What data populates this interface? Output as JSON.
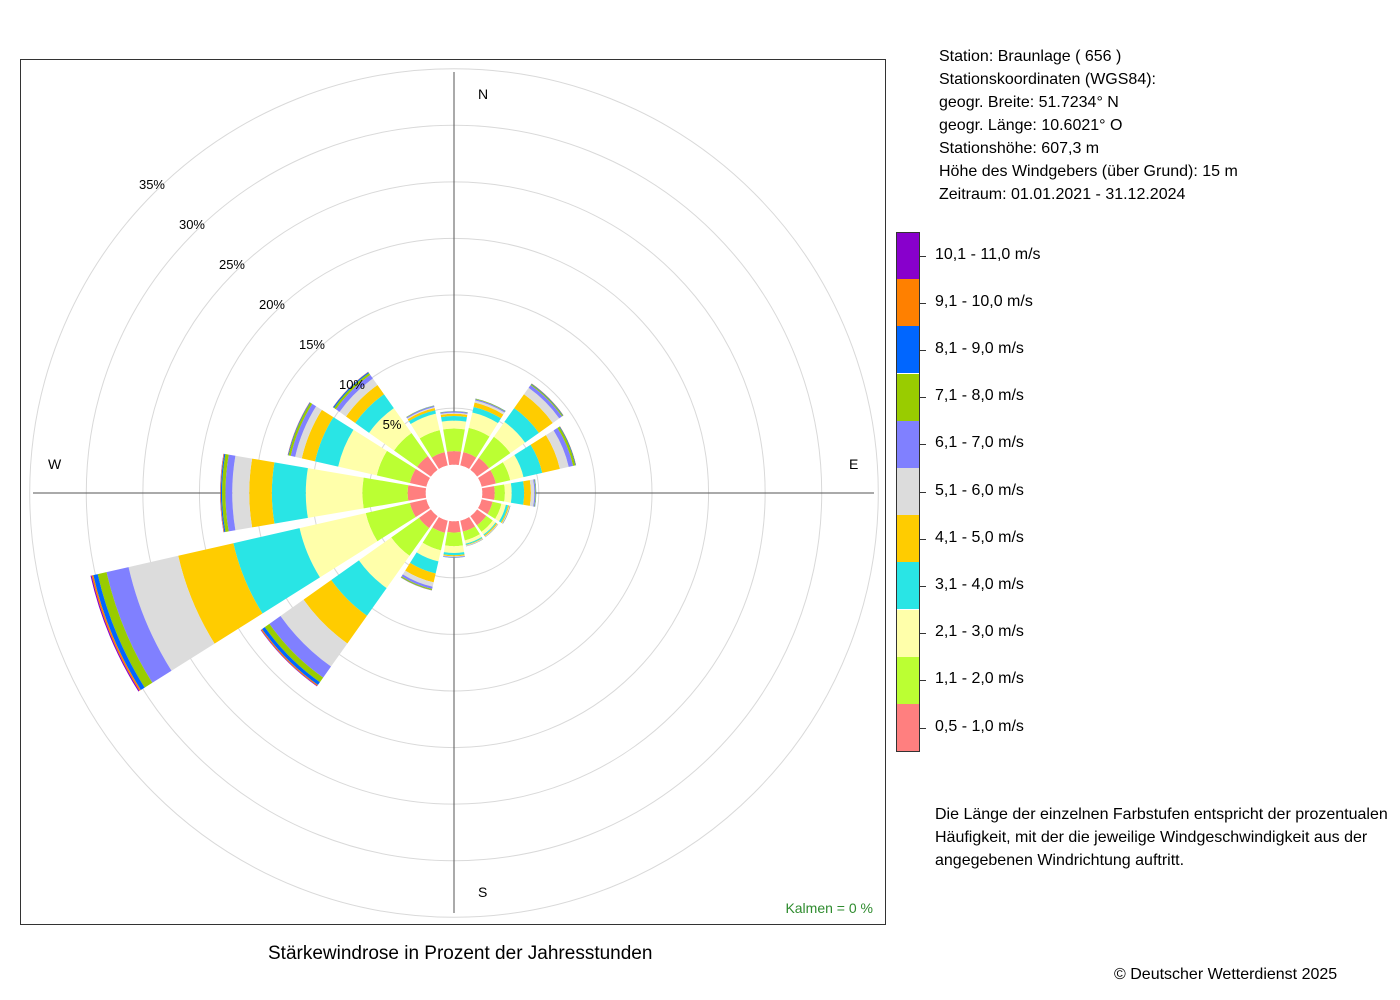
{
  "chart_data": {
    "type": "wind-rose",
    "title": "Stärkewindrose in Prozent der Jahresstunden",
    "directions": [
      "N",
      "NNE",
      "NE",
      "ENE",
      "E",
      "ESE",
      "SE",
      "SSE",
      "S",
      "SSW",
      "SW",
      "WSW",
      "W",
      "WNW",
      "NW",
      "NNW"
    ],
    "direction_labels": {
      "N": "N",
      "E": "E",
      "S": "S",
      "W": "W"
    },
    "rlim": [
      0,
      35
    ],
    "ring_labels": [
      "5%",
      "10%",
      "15%",
      "20%",
      "25%",
      "30%",
      "35%"
    ],
    "ring_values": [
      5,
      10,
      15,
      20,
      25,
      30,
      35
    ],
    "calm_text": "Kalmen  =  0 %",
    "series": [
      {
        "name": "0,5 - 1,0 m/s",
        "color": "#ff7f7f",
        "values": [
          1.2,
          1.2,
          1.3,
          1.3,
          1.1,
          1.0,
          1.0,
          1.0,
          1.0,
          1.1,
          1.3,
          1.5,
          1.6,
          1.5,
          1.5,
          1.2
        ]
      },
      {
        "name": "1,1 - 2,0 m/s",
        "color": "#bbff33",
        "values": [
          2.0,
          2.2,
          2.3,
          1.3,
          0.9,
          0.8,
          0.7,
          0.8,
          1.2,
          1.6,
          3.0,
          4.0,
          4.0,
          3.0,
          2.5,
          2.0
        ]
      },
      {
        "name": "2,1 - 3,0 m/s",
        "color": "#ffffaa",
        "values": [
          0.7,
          1.4,
          1.6,
          1.2,
          0.6,
          0.4,
          0.3,
          0.3,
          0.6,
          1.0,
          3.5,
          6.0,
          5.0,
          3.5,
          2.7,
          1.5
        ]
      },
      {
        "name": "3,1 - 4,0 m/s",
        "color": "#29e5e5",
        "values": [
          0.4,
          0.5,
          1.5,
          1.7,
          1.1,
          0.2,
          0.1,
          0.1,
          0.2,
          1.1,
          3.0,
          6.0,
          3.0,
          2.1,
          1.5,
          0.3
        ]
      },
      {
        "name": "4,1 - 5,0 m/s",
        "color": "#ffcc00",
        "values": [
          0.2,
          0.4,
          1.5,
          1.6,
          0.6,
          0.1,
          0.1,
          0.05,
          0.1,
          0.8,
          3.0,
          5.0,
          2.0,
          1.2,
          1.0,
          0.2
        ]
      },
      {
        "name": "5,1 - 6,0 m/s",
        "color": "#dcdcdc",
        "values": [
          0.1,
          0.2,
          0.7,
          0.8,
          0.3,
          0.05,
          0.05,
          0.05,
          0.05,
          0.4,
          2.5,
          4.5,
          1.5,
          0.6,
          0.7,
          0.1
        ]
      },
      {
        "name": "6,1 - 7,0 m/s",
        "color": "#8080ff",
        "values": [
          0.1,
          0.1,
          0.3,
          0.4,
          0.1,
          0.03,
          0.03,
          0.03,
          0.05,
          0.2,
          1.2,
          2.0,
          0.6,
          0.4,
          0.4,
          0.1
        ]
      },
      {
        "name": "7,1 - 8,0 m/s",
        "color": "#99cc00",
        "values": [
          0.03,
          0.05,
          0.1,
          0.2,
          0.05,
          0.02,
          0.01,
          0.01,
          0.02,
          0.1,
          0.5,
          0.8,
          0.3,
          0.2,
          0.2,
          0.03
        ]
      },
      {
        "name": "8,1 - 9,0 m/s",
        "color": "#0066ff",
        "values": [
          0.01,
          0.02,
          0.05,
          0.05,
          0.02,
          0.01,
          0.0,
          0.0,
          0.01,
          0.03,
          0.3,
          0.4,
          0.1,
          0.05,
          0.1,
          0.01
        ]
      },
      {
        "name": "9,1 - 10,0 m/s",
        "color": "#ff8000",
        "values": [
          0.0,
          0.0,
          0.02,
          0.02,
          0.0,
          0.0,
          0.0,
          0.0,
          0.0,
          0.01,
          0.1,
          0.15,
          0.05,
          0.02,
          0.02,
          0.0
        ]
      },
      {
        "name": "10,1 - 11,0 m/s",
        "color": "#8800cc",
        "values": [
          0.0,
          0.0,
          0.0,
          0.0,
          0.0,
          0.0,
          0.0,
          0.0,
          0.0,
          0.0,
          0.05,
          0.1,
          0.02,
          0.01,
          0.01,
          0.0
        ]
      }
    ]
  },
  "station_info": {
    "station": "Station:  Braunlage  ( 656 )",
    "coords_title": "Stationskoordinaten (WGS84):",
    "latitude": "geogr. Breite: 51.7234° N",
    "longitude": "geogr. Länge: 10.6021° O",
    "elevation": "Stationshöhe: 607,3 m",
    "sensor_height": "Höhe des Windgebers (über Grund): 15 m",
    "period": "Zeitraum: 01.01.2021 - 31.12.2024"
  },
  "explanation": {
    "line1": "Die Länge der einzelnen Farbstufen entspricht der prozentualen",
    "line2": "Häufigkeit, mit der die jeweilige Windgeschwindigkeit aus der",
    "line3": "angegebenen Windrichtung auftritt."
  },
  "copyright": "© Deutscher Wetterdienst  2025"
}
